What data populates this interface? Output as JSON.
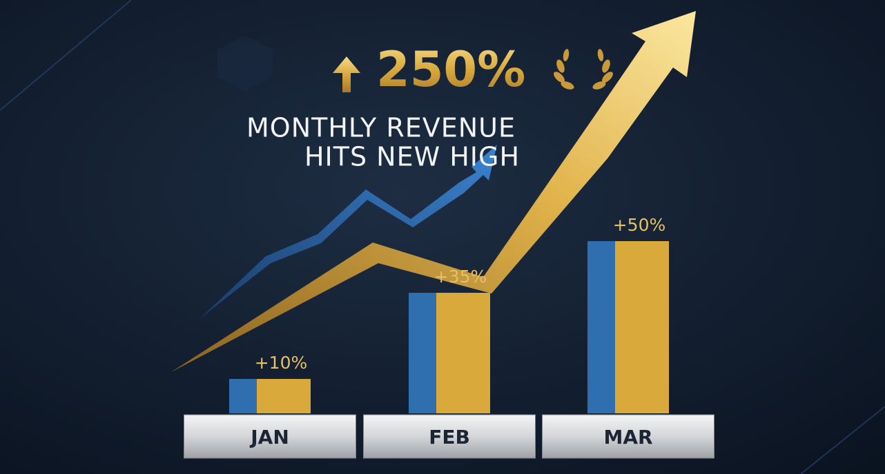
{
  "chart_data": {
    "type": "bar",
    "headline": "250%",
    "title_lines": [
      "MONTHLY REVENUE",
      "HITS NEW HIGH"
    ],
    "categories": [
      "JAN",
      "FEB",
      "MAR"
    ],
    "values": [
      10,
      35,
      50
    ],
    "value_labels": [
      "+10%",
      "+35%",
      "+50%"
    ],
    "colors": [
      "#2f6fb0",
      "#d9a93c"
    ]
  }
}
